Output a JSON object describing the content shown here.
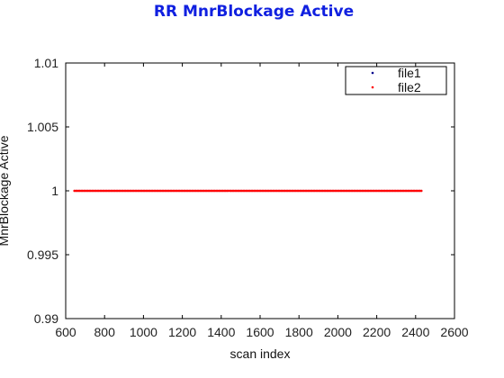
{
  "chart_data": {
    "type": "scatter",
    "title": "RR MnrBlockage Active",
    "xlabel": "scan index",
    "ylabel": "MnrBlockage Active",
    "xlim": [
      600,
      2600
    ],
    "ylim": [
      0.99,
      1.01
    ],
    "x_ticks": [
      600,
      800,
      1000,
      1200,
      1400,
      1600,
      1800,
      2000,
      2200,
      2400,
      2600
    ],
    "x_tick_labels": [
      "600",
      "800",
      "1000",
      "1200",
      "1400",
      "1600",
      "1800",
      "2000",
      "2200",
      "2400",
      "2600"
    ],
    "y_ticks": [
      0.99,
      0.995,
      1,
      1.005,
      1.01
    ],
    "y_tick_labels": [
      "0.99",
      "0.995",
      "1",
      "1.005",
      "1.01"
    ],
    "grid": false,
    "legend_position": "top-right",
    "series": [
      {
        "name": "file1",
        "color": "#00008b",
        "x_range": [
          645,
          2430
        ],
        "value": 1
      },
      {
        "name": "file2",
        "color": "#ff0000",
        "x_range": [
          645,
          2430
        ],
        "value": 1
      }
    ]
  }
}
